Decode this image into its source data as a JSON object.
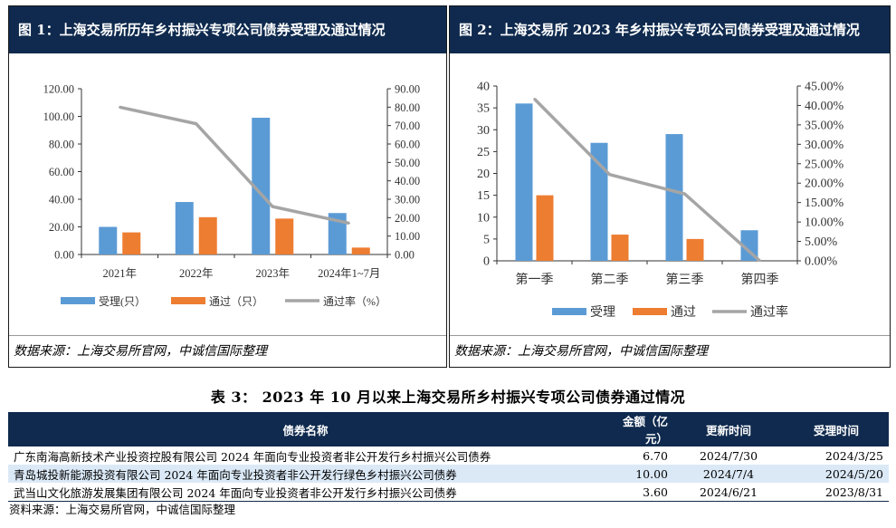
{
  "chart1": {
    "title": "图 1：上海交易所历年乡村振兴专项公司债券受理及通过情况",
    "source": "数据来源：上海交易所官网，中诚信国际整理",
    "chart_data": {
      "type": "bar",
      "categories": [
        "2021年",
        "2022年",
        "2023年",
        "2024年1~7月"
      ],
      "series": [
        {
          "name": "受理(只）",
          "values": [
            20,
            38,
            99,
            30
          ],
          "axis": "left",
          "color": "#5b9bd5",
          "kind": "bar"
        },
        {
          "name": "通过（只）",
          "values": [
            16,
            27,
            26,
            5
          ],
          "axis": "left",
          "color": "#ed7d31",
          "kind": "bar"
        },
        {
          "name": "通过率（%）",
          "values": [
            80,
            71,
            26,
            17
          ],
          "axis": "right",
          "color": "#a5a5a5",
          "kind": "line"
        }
      ],
      "y_left": {
        "min": 0,
        "max": 120,
        "step": 20,
        "tick_labels": [
          "0.00",
          "20.00",
          "40.00",
          "60.00",
          "80.00",
          "100.00",
          "120.00"
        ]
      },
      "y_right": {
        "min": 0,
        "max": 90,
        "step": 10,
        "tick_labels": [
          "0.00",
          "10.00",
          "20.00",
          "30.00",
          "40.00",
          "50.00",
          "60.00",
          "70.00",
          "80.00",
          "90.00"
        ]
      },
      "legend_position": "bottom",
      "grid": false
    }
  },
  "chart2": {
    "title": "图 2：上海交易所 2023 年乡村振兴专项公司债券受理及通过情况",
    "source": "数据来源：上海交易所官网，中诚信国际整理",
    "chart_data": {
      "type": "bar",
      "categories": [
        "第一季",
        "第二季",
        "第三季",
        "第四季"
      ],
      "series": [
        {
          "name": "受理",
          "values": [
            36,
            27,
            29,
            7
          ],
          "axis": "left",
          "color": "#5b9bd5",
          "kind": "bar"
        },
        {
          "name": "通过",
          "values": [
            15,
            6,
            5,
            0
          ],
          "axis": "left",
          "color": "#ed7d31",
          "kind": "bar"
        },
        {
          "name": "通过率",
          "values": [
            41.67,
            22.22,
            17.24,
            0
          ],
          "axis": "right",
          "color": "#a5a5a5",
          "kind": "line"
        }
      ],
      "y_left": {
        "min": 0,
        "max": 40,
        "step": 5,
        "tick_labels": [
          "0",
          "5",
          "10",
          "15",
          "20",
          "25",
          "30",
          "35",
          "40"
        ]
      },
      "y_right": {
        "min": 0,
        "max": 45,
        "step": 5,
        "tick_labels": [
          "0.00%",
          "5.00%",
          "10.00%",
          "15.00%",
          "20.00%",
          "25.00%",
          "30.00%",
          "35.00%",
          "40.00%",
          "45.00%"
        ]
      },
      "legend_position": "bottom",
      "grid": false
    }
  },
  "table": {
    "title": "表 3：  2023 年 10 月以来上海交易所乡村振兴专项公司债券通过情况",
    "headers": {
      "name": "债券名称",
      "amount": "金额（亿元）",
      "updated": "更新时间",
      "accepted": "受理时间"
    },
    "rows": [
      {
        "name": "广东南海高新技术产业投资控股有限公司 2024 年面向专业投资者非公开发行乡村振兴公司债券",
        "amount": "6.70",
        "updated": "2024/7/30",
        "accepted": "2024/3/25"
      },
      {
        "name": "青岛城投新能源投资有限公司 2024 年面向专业投资者非公开发行绿色乡村振兴公司债券",
        "amount": "10.00",
        "updated": "2024/7/4",
        "accepted": "2024/5/20"
      },
      {
        "name": "武当山文化旅游发展集团有限公司 2024 年面向专业投资者非公开发行乡村振兴公司债券",
        "amount": "3.60",
        "updated": "2024/6/21",
        "accepted": "2023/8/31"
      }
    ],
    "source": "资料来源：上海交易所官网，中诚信国际整理"
  }
}
